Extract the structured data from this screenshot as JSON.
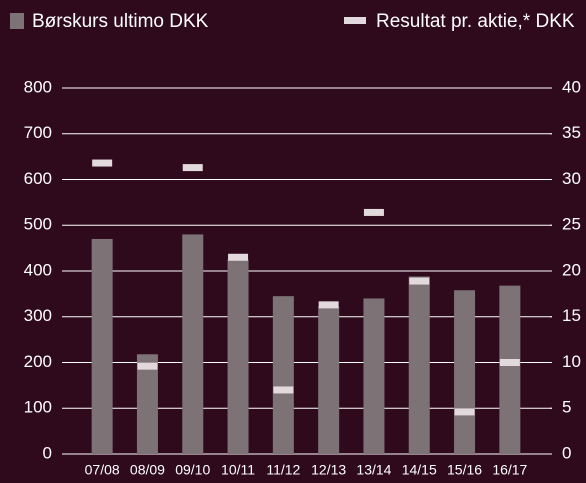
{
  "chart_data": {
    "type": "bar_marker",
    "categories": [
      "07/08",
      "08/09",
      "09/10",
      "10/11",
      "11/12",
      "12/13",
      "13/14",
      "14/15",
      "15/16",
      "16/17"
    ],
    "series": [
      {
        "name": "Børskurs ultimo DKK",
        "color": "#7d7275",
        "values": [
          470,
          218,
          480,
          425,
          345,
          322,
          340,
          388,
          358,
          368
        ]
      },
      {
        "name": "Resultat pr. aktie,* DKK",
        "color": "#e2d9dc",
        "axis": "y2",
        "values": [
          31.8,
          9.6,
          31.3,
          21.5,
          7.0,
          16.3,
          26.4,
          18.9,
          4.6,
          10.0
        ]
      }
    ],
    "ylim": [
      0,
      800
    ],
    "yticks": [
      0,
      100,
      200,
      300,
      400,
      500,
      600,
      700,
      800
    ],
    "y2lim": [
      0,
      40
    ],
    "y2ticks": [
      0,
      5,
      10,
      15,
      20,
      25,
      30,
      35,
      40
    ],
    "grid": true
  }
}
